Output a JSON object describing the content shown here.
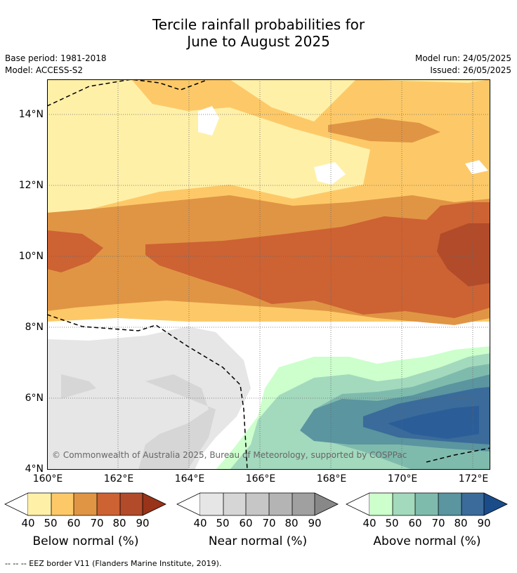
{
  "title_line1": "Tercile rainfall probabilities for",
  "title_line2": "June to August 2025",
  "base_period": "Base period: 1981-2018",
  "model": "Model: ACCESS-S2",
  "model_run": "Model run: 24/05/2025",
  "issued": "Issued: 26/05/2025",
  "lat_labels": [
    "14°N",
    "12°N",
    "10°N",
    "8°N",
    "6°N",
    "4°N"
  ],
  "lon_labels": [
    "160°E",
    "162°E",
    "164°E",
    "166°E",
    "168°E",
    "170°E",
    "172°E"
  ],
  "copyright": "© Commonwealth of Australia 2025, Bureau of Meteorology, supported by COSPPac",
  "colorbars": [
    {
      "title": "Below normal (%)",
      "ticks": [
        "40",
        "50",
        "60",
        "70",
        "80",
        "90"
      ],
      "colors": [
        "#fff0a8",
        "#fdc968",
        "#e09544",
        "#cd6233",
        "#b24b2a",
        "#993319"
      ]
    },
    {
      "title": "Near normal (%)",
      "ticks": [
        "40",
        "50",
        "60",
        "70",
        "80",
        "90"
      ],
      "colors": [
        "#e6e6e6",
        "#d6d6d6",
        "#c6c6c6",
        "#b4b4b4",
        "#a0a0a0",
        "#888888"
      ]
    },
    {
      "title": "Above normal (%)",
      "ticks": [
        "40",
        "50",
        "60",
        "70",
        "80",
        "90"
      ],
      "colors": [
        "#ccffcc",
        "#a3d9bd",
        "#7fbbad",
        "#5a95a0",
        "#3a6b9a",
        "#1a4c8a"
      ]
    }
  ],
  "footer": "--  --  -- EEZ border V11 (Flanders Marine Institute, 2019)."
}
